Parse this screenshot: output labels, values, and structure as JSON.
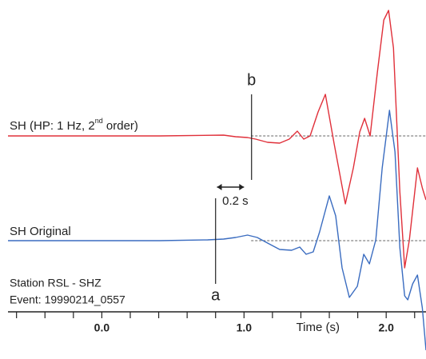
{
  "chart_data": {
    "type": "line",
    "xlabel": "Time (s)",
    "xlim": [
      -0.66,
      2.28
    ],
    "ylim": [
      -5.9,
      39
    ],
    "xticks": [
      {
        "value": 0,
        "label": "0.0"
      },
      {
        "value": 1,
        "label": "1.0"
      },
      {
        "value": 2,
        "label": "2.0"
      }
    ],
    "xminor_ticks": [
      -0.6,
      -0.4,
      -0.2,
      0.2,
      0.4,
      0.6,
      0.8,
      1.2,
      1.4,
      1.6,
      1.8,
      2.2
    ],
    "series": [
      {
        "name": "SH (HP: 1 Hz, 2nd order)",
        "color": "#e0303a",
        "baseline": 22.0,
        "x": [
          -0.66,
          -0.158,
          0.406,
          0.856,
          0.941,
          1.025,
          1.082,
          1.166,
          1.251,
          1.318,
          1.375,
          1.42,
          1.465,
          1.521,
          1.572,
          1.634,
          1.713,
          1.769,
          1.814,
          1.848,
          1.887,
          1.938,
          1.983,
          2.017,
          2.051,
          2.096,
          2.13,
          2.163,
          2.22,
          2.254,
          2.28
        ],
        "values": [
          22.0,
          22.0,
          22.0,
          22.1,
          21.9,
          21.8,
          21.6,
          21.2,
          21.1,
          21.6,
          22.6,
          21.6,
          22.0,
          25.0,
          27.2,
          21.0,
          13.5,
          18.0,
          22.5,
          24.2,
          22.0,
          30.0,
          36.5,
          37.7,
          33.0,
          15.0,
          5.5,
          9.0,
          18.0,
          15.5,
          14.0
        ]
      },
      {
        "name": "SH Original",
        "color": "#3a6cc0",
        "baseline": 8.9,
        "x": [
          -0.66,
          -0.158,
          0.406,
          0.744,
          0.856,
          0.941,
          1.025,
          1.093,
          1.166,
          1.251,
          1.335,
          1.392,
          1.437,
          1.487,
          1.532,
          1.6,
          1.645,
          1.69,
          1.741,
          1.797,
          1.842,
          1.882,
          1.927,
          1.972,
          2.023,
          2.062,
          2.096,
          2.13,
          2.152,
          2.186,
          2.22,
          2.254,
          2.28
        ],
        "values": [
          8.9,
          8.9,
          8.9,
          9.0,
          9.1,
          9.3,
          9.6,
          9.3,
          8.6,
          7.8,
          7.7,
          8.1,
          7.2,
          7.5,
          10.0,
          14.5,
          12.0,
          5.5,
          1.8,
          3.2,
          7.2,
          6.0,
          9.0,
          18.0,
          25.2,
          20.0,
          8.0,
          2.0,
          1.5,
          3.5,
          4.6,
          0.5,
          -4.8
        ]
      }
    ],
    "markers": [
      {
        "label": "a",
        "x": 0.8
      },
      {
        "label": "b",
        "x": 1.053
      }
    ],
    "interval": {
      "label": "0.2 s",
      "x": [
        0.81,
        1.0
      ]
    },
    "notes": [
      "Station RSL - SHZ",
      "Event: 19990214_0557"
    ]
  }
}
